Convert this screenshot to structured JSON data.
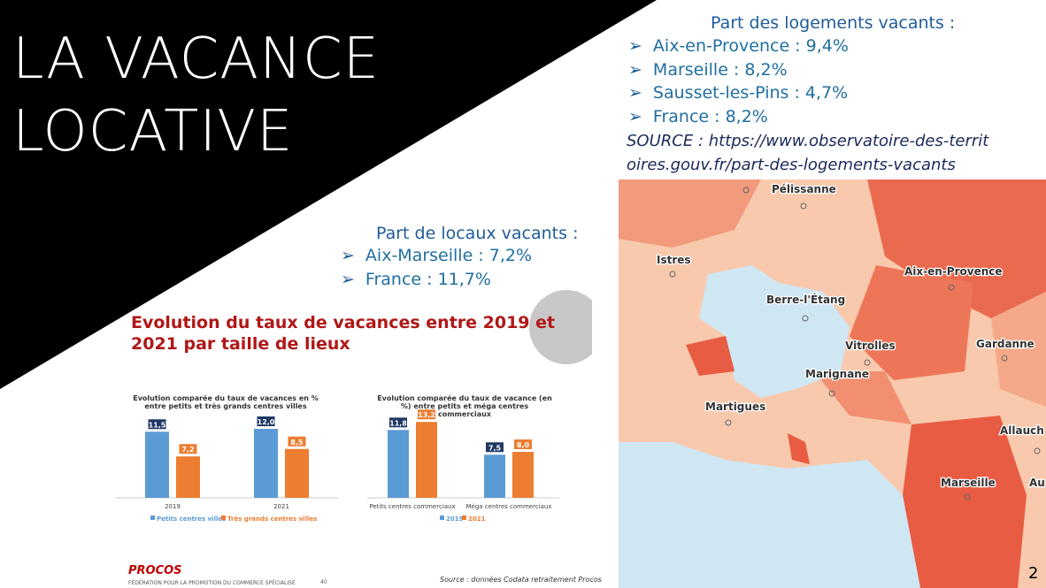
{
  "title": [
    "LA VACANCE",
    "LOCATIVE"
  ],
  "housing": {
    "heading": "Part des logements vacants :",
    "items": [
      "Aix-en-Provence : 9,4%",
      "Marseille : 8,2%",
      "Sausset-les-Pins : 4,7%",
      "France : 8,2%"
    ],
    "source": "SOURCE : https://www.observatoire-des-territoires.gouv.fr/part-des-logements-vacants"
  },
  "premises": {
    "heading": "Part de locaux vacants :",
    "items": [
      "Aix-Marseille : 7,2%",
      "France : 11,7%"
    ]
  },
  "figure": {
    "title": "Evolution du taux de vacances entre 2019 et 2021 par taille de lieux",
    "charts": [
      {
        "type": "bar",
        "title": "Evolution comparée du taux de vacances en % entre petits et très grands centres villes",
        "categories": [
          "2019",
          "2021"
        ],
        "series": [
          {
            "name": "Petits centres villes",
            "color": "#5b9bd5",
            "values": [
              11.5,
              12.0
            ],
            "value_labels": [
              "11,5",
              "12,0"
            ]
          },
          {
            "name": "Très grands centres villes",
            "color": "#ed7d31",
            "values": [
              7.2,
              8.5
            ],
            "value_labels": [
              "7,2",
              "8,5"
            ]
          }
        ]
      },
      {
        "type": "bar",
        "title": "Evolution comparée du taux de vacance (en %) entre petits et méga centres commerciaux",
        "categories": [
          "Petits centres commerciaux",
          "Méga centres commerciaux"
        ],
        "series": [
          {
            "name": "2019",
            "color": "#5b9bd5",
            "values": [
              11.8,
              7.5
            ],
            "value_labels": [
              "11,8",
              "7,5"
            ]
          },
          {
            "name": "2021",
            "color": "#ed7d31",
            "values": [
              13.2,
              8.0
            ],
            "value_labels": [
              "13,2",
              "8,0"
            ]
          }
        ]
      }
    ],
    "logo": "PROCOS",
    "logo_subtitle": "FÉDÉRATION POUR LA PROMOTION DU COMMERCE SPÉCIALISÉ",
    "page_ref": "40",
    "source": "Source : données Codata retraitement Procos"
  },
  "map": {
    "labels": [
      "Pélissanne",
      "Istres",
      "Aix-en-Provence",
      "Berre-l'Étang",
      "Vitrolles",
      "Gardanne",
      "Marignane",
      "Martigues",
      "Allauch",
      "Marseille",
      "Au"
    ]
  },
  "page_number": "2"
}
